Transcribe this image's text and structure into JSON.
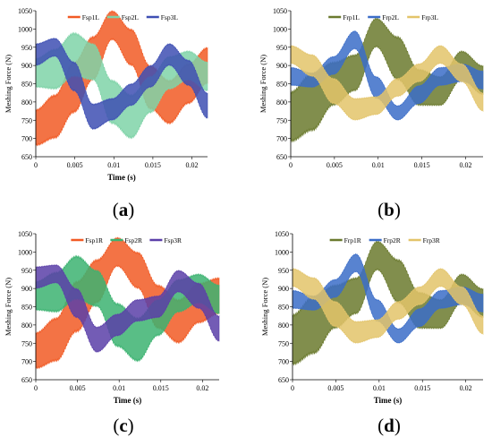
{
  "colors": {
    "orange": "#F15A24",
    "green": "#3CB371",
    "lightgreen": "#7FD3A8",
    "blue": "#3E4FB3",
    "purple": "#5B3FA8",
    "olive": "#6B7A2E",
    "royal": "#3B6DC8",
    "tan": "#E3C46A"
  },
  "captions": [
    "a",
    "b",
    "c",
    "d"
  ],
  "chart_data": [
    {
      "type": "line",
      "panel": "a",
      "xlabel": "Time (s)",
      "ylabel": "Meshing Force (N)",
      "xlim": [
        0,
        0.022
      ],
      "ylim": [
        650,
        1050
      ],
      "xticks": [
        "0",
        "0.005",
        "0.01",
        "0.015",
        "0.02"
      ],
      "yticks": [
        "650",
        "700",
        "750",
        "800",
        "850",
        "900",
        "950",
        "1000",
        "1050"
      ],
      "legend_position": "top",
      "series": [
        {
          "name": "Fsp1L",
          "color": "#F15A24",
          "center": [
            730,
            760,
            840,
            920,
            1010,
            950,
            840,
            800,
            850,
            900
          ],
          "amp": [
            50,
            60,
            70,
            60,
            40,
            50,
            60,
            60,
            55,
            50
          ]
        },
        {
          "name": "Fsp2L",
          "color": "#7FD3A8",
          "center": [
            880,
            890,
            930,
            910,
            800,
            760,
            820,
            880,
            900,
            870
          ],
          "amp": [
            40,
            55,
            60,
            50,
            60,
            60,
            50,
            45,
            40,
            40
          ]
        },
        {
          "name": "Fsp3L",
          "color": "#3E4FB3",
          "center": [
            930,
            950,
            870,
            760,
            780,
            820,
            870,
            930,
            880,
            790
          ],
          "amp": [
            30,
            25,
            40,
            35,
            30,
            30,
            30,
            30,
            35,
            35
          ]
        }
      ]
    },
    {
      "type": "line",
      "panel": "b",
      "xlabel": "",
      "ylabel": "Meshing Force (N)",
      "xlim": [
        0,
        0.022
      ],
      "ylim": [
        650,
        1050
      ],
      "xticks": [
        "0",
        "0.005",
        "0.01",
        "0.015",
        "0.02"
      ],
      "yticks": [
        "650",
        "700",
        "750",
        "800",
        "850",
        "900",
        "950",
        "1000",
        "1050"
      ],
      "legend_position": "top",
      "series": [
        {
          "name": "Frp1L",
          "color": "#6B7A2E",
          "center": [
            760,
            800,
            850,
            880,
            990,
            920,
            840,
            830,
            900,
            860
          ],
          "amp": [
            70,
            80,
            60,
            50,
            40,
            60,
            50,
            40,
            40,
            40
          ]
        },
        {
          "name": "Frp2L",
          "color": "#3B6DC8",
          "center": [
            870,
            860,
            900,
            970,
            840,
            770,
            820,
            870,
            880,
            860
          ],
          "amp": [
            25,
            20,
            25,
            25,
            30,
            20,
            25,
            25,
            25,
            25
          ]
        },
        {
          "name": "Frp3L",
          "color": "#E3C46A",
          "center": [
            930,
            900,
            830,
            780,
            790,
            840,
            880,
            930,
            880,
            800
          ],
          "amp": [
            25,
            30,
            35,
            30,
            25,
            25,
            25,
            25,
            25,
            25
          ]
        }
      ]
    },
    {
      "type": "line",
      "panel": "c",
      "xlabel": "Time (s)",
      "ylabel": "Meshing Force (N)",
      "xlim": [
        0,
        0.022
      ],
      "ylim": [
        650,
        1050
      ],
      "xticks": [
        "0",
        "0.005",
        "0.01",
        "0.015",
        "0.02"
      ],
      "yticks": [
        "650",
        "700",
        "750",
        "800",
        "850",
        "900",
        "950",
        "1000",
        "1050"
      ],
      "legend_position": "top",
      "series": [
        {
          "name": "Fsp1R",
          "color": "#F15A24",
          "center": [
            730,
            760,
            850,
            920,
            1000,
            950,
            850,
            810,
            860,
            880
          ],
          "amp": [
            50,
            60,
            70,
            60,
            40,
            50,
            60,
            60,
            55,
            50
          ]
        },
        {
          "name": "Fsp2R",
          "color": "#3CB371",
          "center": [
            880,
            890,
            930,
            900,
            800,
            760,
            820,
            880,
            900,
            870
          ],
          "amp": [
            40,
            55,
            60,
            50,
            60,
            60,
            50,
            45,
            40,
            40
          ]
        },
        {
          "name": "Fsp3R",
          "color": "#5B3FA8",
          "center": [
            930,
            940,
            860,
            760,
            800,
            840,
            850,
            920,
            880,
            790
          ],
          "amp": [
            30,
            25,
            40,
            35,
            30,
            30,
            30,
            30,
            35,
            35
          ]
        }
      ]
    },
    {
      "type": "line",
      "panel": "d",
      "xlabel": "Time (s)",
      "ylabel": "Meshing Force (N)",
      "xlim": [
        0,
        0.022
      ],
      "ylim": [
        650,
        1050
      ],
      "xticks": [
        "0",
        "0.005",
        "0.01",
        "0.015",
        "0.02"
      ],
      "yticks": [
        "650",
        "700",
        "750",
        "800",
        "850",
        "900",
        "950",
        "1000",
        "1050"
      ],
      "legend_position": "top",
      "series": [
        {
          "name": "Frp1R",
          "color": "#6B7A2E",
          "center": [
            760,
            800,
            850,
            880,
            990,
            920,
            840,
            830,
            900,
            860
          ],
          "amp": [
            70,
            80,
            60,
            50,
            40,
            60,
            50,
            40,
            40,
            40
          ]
        },
        {
          "name": "Frp2R",
          "color": "#3B6DC8",
          "center": [
            870,
            860,
            900,
            970,
            840,
            770,
            820,
            870,
            880,
            860
          ],
          "amp": [
            25,
            20,
            25,
            25,
            30,
            20,
            25,
            25,
            25,
            25
          ]
        },
        {
          "name": "Frp3R",
          "color": "#E3C46A",
          "center": [
            930,
            900,
            830,
            780,
            790,
            840,
            880,
            930,
            880,
            800
          ],
          "amp": [
            25,
            30,
            35,
            30,
            25,
            25,
            25,
            25,
            25,
            25
          ]
        }
      ]
    }
  ]
}
